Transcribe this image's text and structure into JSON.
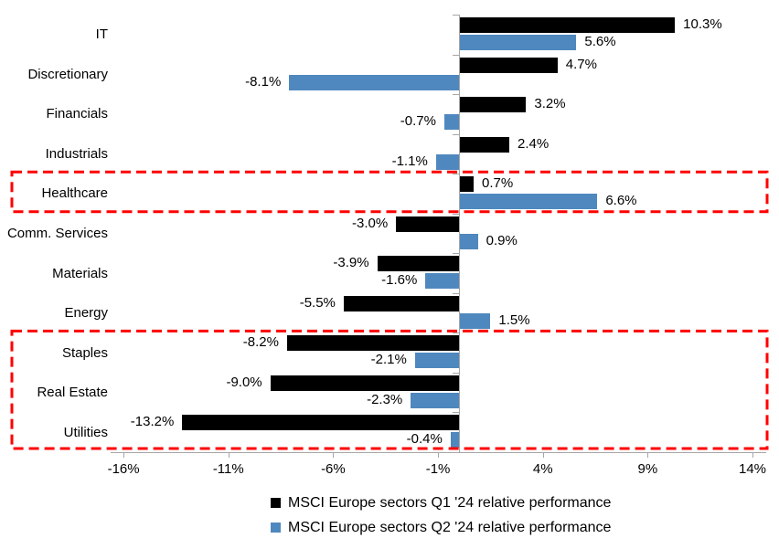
{
  "chart_data": {
    "type": "bar",
    "orientation": "horizontal",
    "title": "",
    "xlabel": "",
    "ylabel": "",
    "categories": [
      "IT",
      "Discretionary",
      "Financials",
      "Industrials",
      "Healthcare",
      "Comm. Services",
      "Materials",
      "Energy",
      "Staples",
      "Real Estate",
      "Utilities"
    ],
    "series": [
      {
        "name": "MSCI Europe sectors Q1 '24 relative performance",
        "color": "#000000",
        "values": [
          10.3,
          4.7,
          3.2,
          2.4,
          0.7,
          -3.0,
          -3.9,
          -5.5,
          -8.2,
          -9.0,
          -13.2
        ],
        "labels": [
          "10.3%",
          "4.7%",
          "3.2%",
          "2.4%",
          "0.7%",
          "-3.0%",
          "-3.9%",
          "-5.5%",
          "-8.2%",
          "-9.0%",
          "-13.2%"
        ]
      },
      {
        "name": "MSCI Europe sectors Q2 '24 relative performance",
        "color": "#4f88be",
        "values": [
          5.6,
          -8.1,
          -0.7,
          -1.1,
          6.6,
          0.9,
          -1.6,
          1.5,
          -2.1,
          -2.3,
          -0.4
        ],
        "labels": [
          "5.6%",
          "-8.1%",
          "-0.7%",
          "-1.1%",
          "6.6%",
          "0.9%",
          "-1.6%",
          "1.5%",
          "-2.1%",
          "-2.3%",
          "-0.4%"
        ]
      }
    ],
    "x_ticks": [
      "-16%",
      "-11%",
      "-6%",
      "-1%",
      "4%",
      "9%",
      "14%"
    ],
    "x_tick_values": [
      -16,
      -11,
      -6,
      -1,
      4,
      9,
      14
    ],
    "xlim": [
      -16.6,
      14.6
    ],
    "grid": false,
    "legend_position": "bottom",
    "highlight_color": "#ff0000",
    "highlight_boxes": [
      {
        "categories": [
          "Healthcare"
        ],
        "first_index": 4,
        "last_index": 4
      },
      {
        "categories": [
          "Staples",
          "Real Estate",
          "Utilities"
        ],
        "first_index": 8,
        "last_index": 10
      }
    ]
  }
}
